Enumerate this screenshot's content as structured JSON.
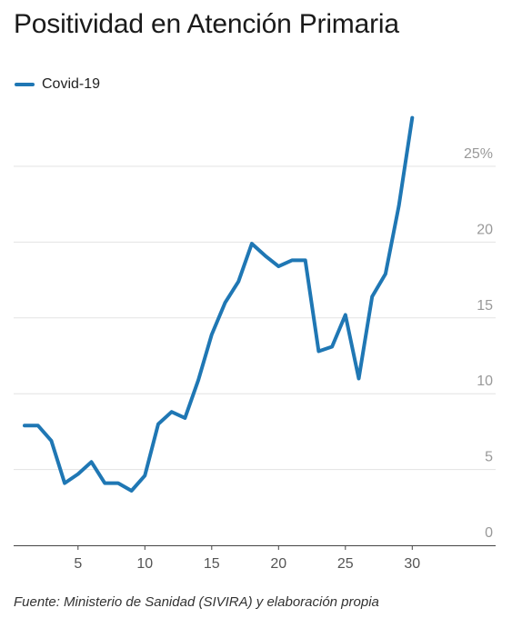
{
  "title": "Positividad en Atención Primaria",
  "source": "Fuente: Ministerio de Sanidad (SIVIRA) y elaboración propia",
  "colors": {
    "series": "#1f77b4",
    "grid": "#e3e3e3",
    "axis": "#444444"
  },
  "chart_data": {
    "type": "line",
    "title": "Positividad en Atención Primaria",
    "xlabel": "",
    "ylabel": "",
    "xlim": [
      0,
      34
    ],
    "ylim": [
      0,
      25
    ],
    "x_ticks": [
      5,
      10,
      15,
      20,
      25,
      30
    ],
    "x_tick_labels": [
      "5",
      "10",
      "15",
      "20",
      "25",
      "30"
    ],
    "y_ticks": [
      0,
      5,
      10,
      15,
      20,
      25
    ],
    "y_tick_labels": [
      "0",
      "5",
      "10",
      "15",
      "20",
      "25%"
    ],
    "grid": "horizontal",
    "legend_position": "top-left",
    "series": [
      {
        "name": "Covid-19",
        "color": "#1f77b4",
        "x": [
          1,
          2,
          3,
          4,
          5,
          6,
          7,
          8,
          9,
          10,
          11,
          12,
          13,
          14,
          15,
          16,
          17,
          18,
          19,
          20,
          21,
          22,
          23,
          24,
          25,
          26,
          27,
          28,
          29,
          30
        ],
        "y": [
          7.9,
          7.9,
          6.9,
          4.1,
          4.7,
          5.5,
          4.1,
          4.1,
          3.6,
          4.6,
          8.0,
          8.8,
          8.4,
          10.9,
          13.9,
          16.0,
          17.4,
          19.9,
          19.1,
          18.4,
          18.8,
          18.8,
          12.8,
          13.1,
          15.2,
          11.0,
          16.4,
          17.9,
          22.4,
          28.2
        ]
      }
    ]
  }
}
